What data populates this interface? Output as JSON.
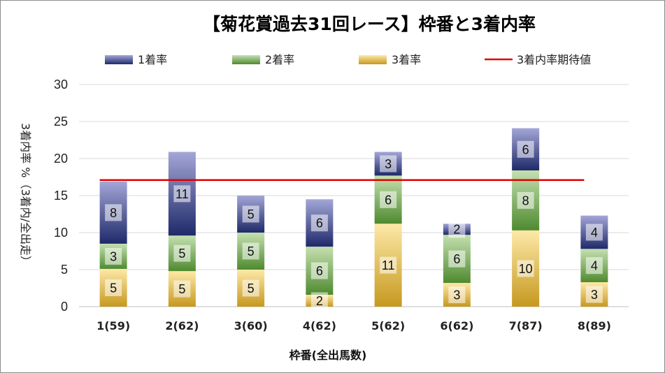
{
  "chart_data": {
    "type": "bar",
    "stacked": true,
    "title": "【菊花賞過去31回レース】枠番と3着内率",
    "xlabel": "枠番(全出馬数)",
    "ylabel": "3着内率 %（3着内/全出走）",
    "ylim": [
      0,
      30
    ],
    "yticks": [
      "0",
      "5",
      "10",
      "15",
      "20",
      "25",
      "30"
    ],
    "grid": true,
    "legend_position": "top",
    "categories": [
      "1(59)",
      "2(62)",
      "3(60)",
      "4(62)",
      "5(62)",
      "6(62)",
      "7(87)",
      "8(89)"
    ],
    "series": [
      {
        "name": "3着率",
        "counts": [
          "5",
          "5",
          "5",
          "2",
          "11",
          "3",
          "10",
          "3"
        ],
        "values": [
          5.1,
          4.8,
          5.0,
          1.6,
          11.2,
          3.2,
          10.3,
          3.3
        ],
        "colors": [
          "#fde9a8",
          "#c6981f"
        ]
      },
      {
        "name": "2着率",
        "counts": [
          "3",
          "5",
          "5",
          "6",
          "6",
          "6",
          "8",
          "4"
        ],
        "values": [
          3.4,
          4.8,
          5.0,
          6.5,
          6.5,
          6.5,
          8.1,
          4.5
        ],
        "colors": [
          "#c5e0b0",
          "#4f8a2f"
        ]
      },
      {
        "name": "1着率",
        "counts": [
          "8",
          "11",
          "5",
          "6",
          "3",
          "2",
          "6",
          "4"
        ],
        "values": [
          8.4,
          11.3,
          5.0,
          6.4,
          3.2,
          1.5,
          5.7,
          4.5
        ],
        "colors": [
          "#a3a6d6",
          "#1f2a6a"
        ]
      }
    ],
    "reference_line": {
      "name": "3着内率期待値",
      "value": 17.1,
      "color": "#e00000"
    }
  }
}
